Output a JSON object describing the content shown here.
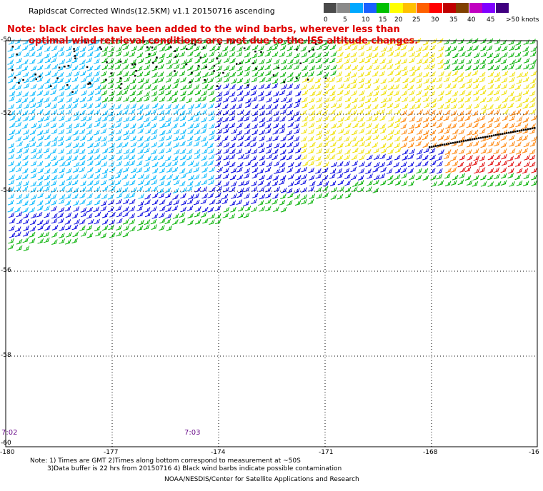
{
  "title": "Rapidscat Corrected Winds(12.5KM) v1.1 20150716 ascending",
  "note": {
    "line1": "Note: black circles have been added to the wind barbs, wherever less than",
    "line2": "optimal wind retrieval conditions are met due to the ISS altitude changes."
  },
  "scale": {
    "colors": [
      "#4a4a4a",
      "#8a8a8a",
      "#00a8ff",
      "#1a60ff",
      "#00c000",
      "#ffff00",
      "#ffc000",
      "#ff6000",
      "#ff0000",
      "#c00000",
      "#804000",
      "#c000c0",
      "#8000ff",
      "#400080"
    ],
    "labels": [
      "0",
      "5",
      "10",
      "15",
      "20",
      "25",
      "30",
      "35",
      "40",
      "45",
      ">50 knots"
    ]
  },
  "axes": {
    "lat_labels": [
      "-50",
      "-52",
      "-54",
      "-56",
      "-58",
      "-60"
    ],
    "lon_labels": [
      "-180",
      "-177",
      "-174",
      "-171",
      "-168",
      "-16"
    ]
  },
  "time_labels": [
    "7:02",
    "7:03"
  ],
  "footer": {
    "notes_line1": "Note: 1) Times are GMT 2)Times along bottom correspond to measurement at ~50S",
    "notes_line2": "3)Data buffer is 22 hrs from 20150716 4) Black wind barbs indicate possible contamination",
    "credit": "NOAA/NESDIS/Center for Satellite Applications and Research"
  },
  "map_data": {
    "lat_range": [
      -60,
      -50
    ],
    "lon_range": [
      -180,
      -165
    ],
    "barb_colors": {
      "cyan": "#00b8ff",
      "blue": "#0000e0",
      "green": "#00b000",
      "yellow": "#f0e000",
      "orange": "#ff8000",
      "red": "#e00000",
      "black": "#000000"
    }
  }
}
